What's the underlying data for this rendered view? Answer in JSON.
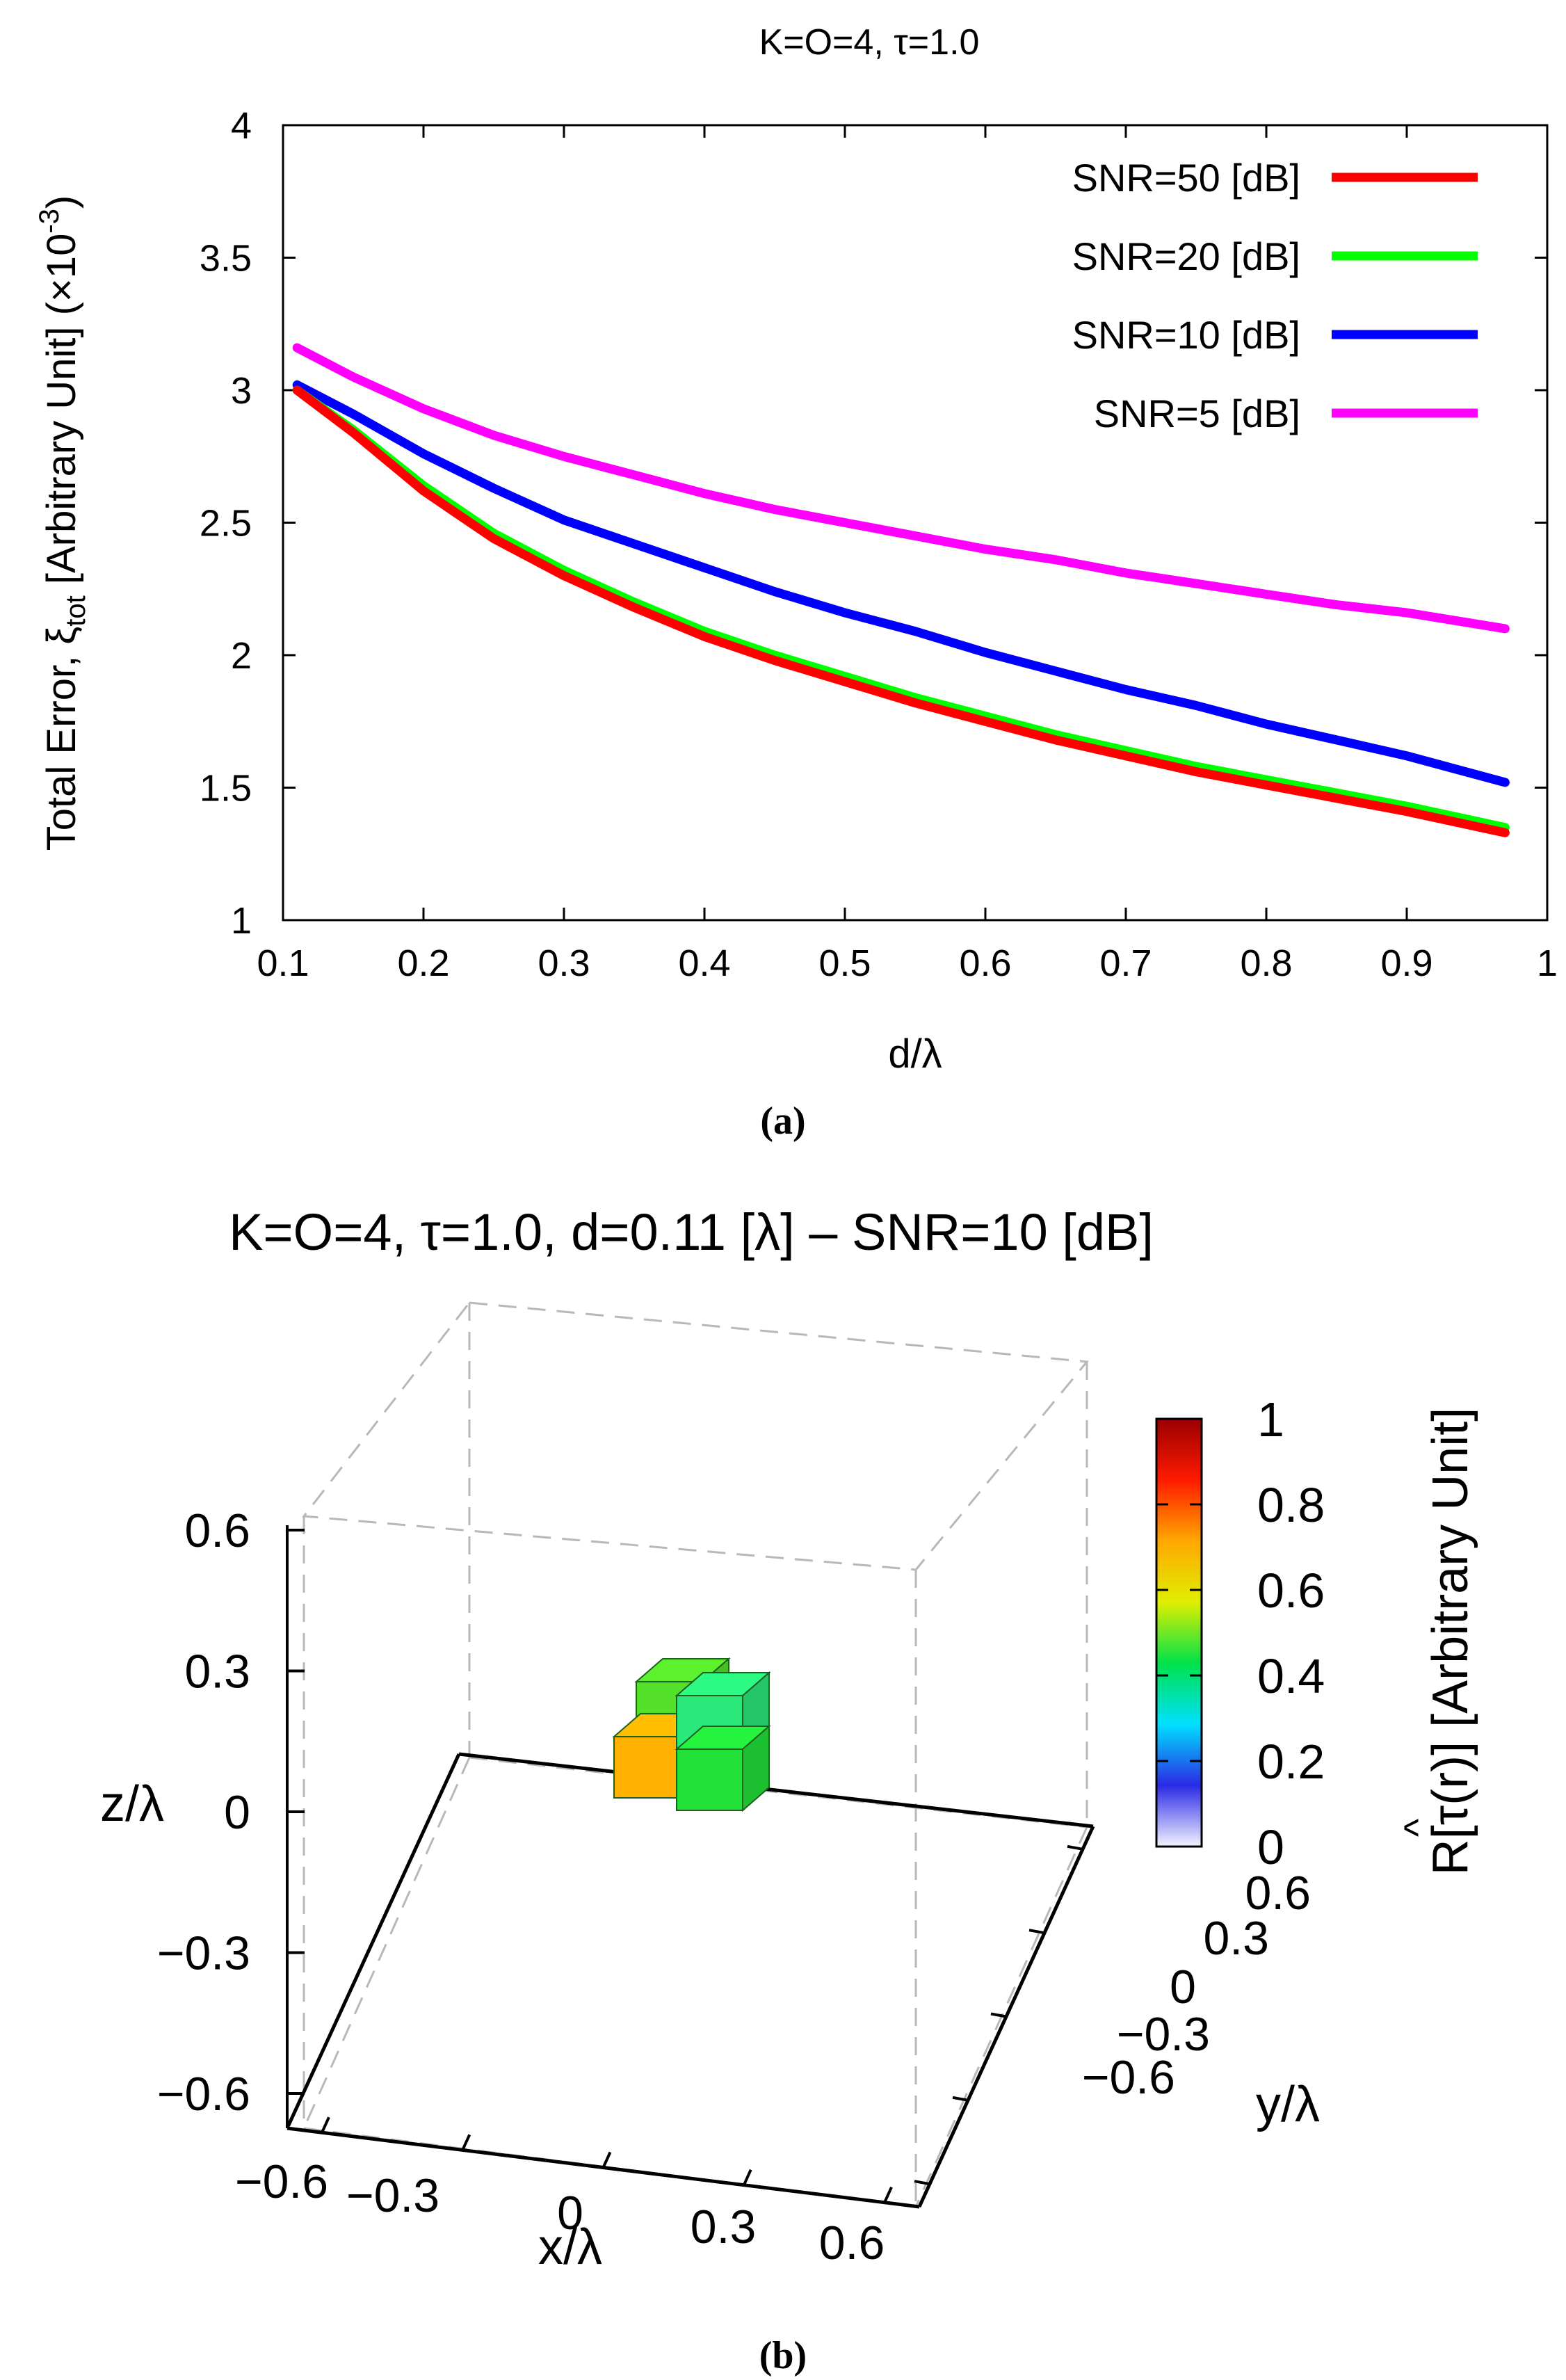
{
  "chart_data": [
    {
      "type": "line",
      "panel_label": "(a)",
      "title": "K=O=4, τ=1.0",
      "xlabel": "d/λ",
      "ylabel": {
        "prefix": "Total Error, ξ",
        "subscript": "tot",
        "suffix": " [Arbitrary Unit] (×10",
        "superscript": "-3",
        "close": ")"
      },
      "xlim": [
        0.1,
        1.0
      ],
      "ylim": [
        1,
        4
      ],
      "x_ticks": [
        "0.1",
        "0.2",
        "0.3",
        "0.4",
        "0.5",
        "0.6",
        "0.7",
        "0.8",
        "0.9",
        "1"
      ],
      "y_ticks": [
        "1",
        "1.5",
        "2",
        "2.5",
        "3",
        "3.5",
        "4"
      ],
      "legend_position": "top-right",
      "x": [
        0.11,
        0.15,
        0.2,
        0.25,
        0.3,
        0.35,
        0.4,
        0.45,
        0.5,
        0.55,
        0.6,
        0.65,
        0.7,
        0.75,
        0.8,
        0.85,
        0.9,
        0.97
      ],
      "series": [
        {
          "name": "SNR=50 [dB]",
          "color": "#ff0000",
          "values": [
            3.0,
            2.84,
            2.62,
            2.44,
            2.3,
            2.18,
            2.07,
            1.98,
            1.9,
            1.82,
            1.75,
            1.68,
            1.62,
            1.56,
            1.51,
            1.46,
            1.41,
            1.33
          ]
        },
        {
          "name": "SNR=20 [dB]",
          "color": "#00ff00",
          "values": [
            3.0,
            2.85,
            2.64,
            2.46,
            2.32,
            2.2,
            2.09,
            2.0,
            1.92,
            1.84,
            1.77,
            1.7,
            1.64,
            1.58,
            1.53,
            1.48,
            1.43,
            1.35
          ]
        },
        {
          "name": "SNR=10 [dB]",
          "color": "#0000ff",
          "values": [
            3.02,
            2.91,
            2.76,
            2.63,
            2.51,
            2.42,
            2.33,
            2.24,
            2.16,
            2.09,
            2.01,
            1.94,
            1.87,
            1.81,
            1.74,
            1.68,
            1.62,
            1.52
          ]
        },
        {
          "name": "SNR=5 [dB]",
          "color": "#ff00ff",
          "values": [
            3.16,
            3.05,
            2.93,
            2.83,
            2.75,
            2.68,
            2.61,
            2.55,
            2.5,
            2.45,
            2.4,
            2.36,
            2.31,
            2.27,
            2.23,
            2.19,
            2.16,
            2.1
          ]
        }
      ]
    },
    {
      "type": "heatmap",
      "panel_label": "(b)",
      "title": "K=O=4, τ=1.0, d=0.11 [λ] – SNR=10 [dB]",
      "xlabel": "x/λ",
      "ylabel": "y/λ",
      "zlabel": "z/λ",
      "x_ticks": [
        "−0.6",
        "−0.3",
        "0",
        "0.3",
        "0.6"
      ],
      "y_ticks": [
        "0.6",
        "0.3",
        "0",
        "−0.3",
        "−0.6"
      ],
      "z_ticks": [
        "0.6",
        "0.3",
        "0",
        "−0.3",
        "−0.6"
      ],
      "colorbar": {
        "label": "R[τ(r)] [Arbitrary Unit]",
        "hat": "^",
        "ticks": [
          "1",
          "0.8",
          "0.6",
          "0.4",
          "0.2",
          "0"
        ],
        "range": [
          0,
          1
        ],
        "colors": [
          "#f4f4ff",
          "#2a2ae6",
          "#00e0ff",
          "#00e24a",
          "#e0ee00",
          "#ffa800",
          "#ff1a00",
          "#9a0000"
        ]
      },
      "voxels": [
        {
          "label": "upper-left voxel",
          "value": 0.5,
          "color": "#55e02a"
        },
        {
          "label": "upper-right voxel",
          "value": 0.38,
          "color": "#2ae87a"
        },
        {
          "label": "lower-left voxel",
          "value": 0.76,
          "color": "#ffb000"
        },
        {
          "label": "lower-right voxel",
          "value": 0.45,
          "color": "#22e23a"
        }
      ]
    }
  ]
}
